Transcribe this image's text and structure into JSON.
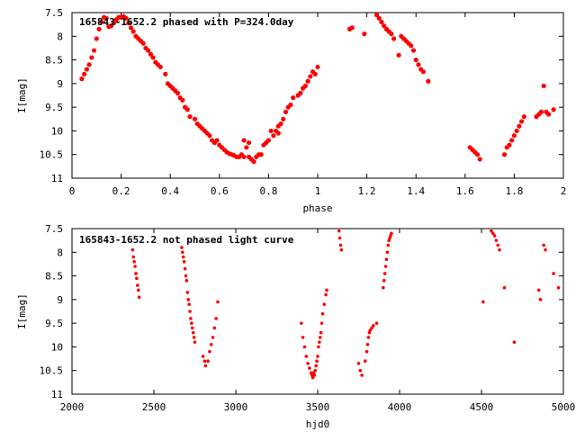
{
  "chart_data": [
    {
      "type": "scatter",
      "title": "165843-1652.2 phased with P=324.0day",
      "xlabel": "phase",
      "ylabel": "I[mag]",
      "xlim": [
        0,
        2
      ],
      "ylim": [
        7.5,
        11
      ],
      "y_inverted": true,
      "grid": false,
      "marker_color": "#ff0000",
      "xticks": [
        "0",
        "0.2",
        "0.4",
        "0.6",
        "0.8",
        "1",
        "1.2",
        "1.4",
        "1.6",
        "1.8",
        "2"
      ],
      "xtick_values": [
        0,
        0.2,
        0.4,
        0.6,
        0.8,
        1.0,
        1.2,
        1.4,
        1.6,
        1.8,
        2.0
      ],
      "yticks": [
        "7.5",
        "8",
        "8.5",
        "9",
        "9.5",
        "10",
        "10.5",
        "11"
      ],
      "ytick_values": [
        7.5,
        8.0,
        8.5,
        9.0,
        9.5,
        10.0,
        10.5,
        11.0
      ],
      "points": [
        [
          0.04,
          8.9
        ],
        [
          0.05,
          8.8
        ],
        [
          0.06,
          8.7
        ],
        [
          0.07,
          8.6
        ],
        [
          0.08,
          8.45
        ],
        [
          0.09,
          8.3
        ],
        [
          0.1,
          8.05
        ],
        [
          0.11,
          7.85
        ],
        [
          0.12,
          7.7
        ],
        [
          0.13,
          7.6
        ],
        [
          0.14,
          7.62
        ],
        [
          0.15,
          7.8
        ],
        [
          0.16,
          7.78
        ],
        [
          0.17,
          7.72
        ],
        [
          0.18,
          7.65
        ],
        [
          0.19,
          7.6
        ],
        [
          0.2,
          7.6
        ],
        [
          0.21,
          7.58
        ],
        [
          0.22,
          7.62
        ],
        [
          0.23,
          7.72
        ],
        [
          0.24,
          7.82
        ],
        [
          0.25,
          7.9
        ],
        [
          0.26,
          8.0
        ],
        [
          0.27,
          8.05
        ],
        [
          0.28,
          8.1
        ],
        [
          0.29,
          8.15
        ],
        [
          0.3,
          8.25
        ],
        [
          0.31,
          8.3
        ],
        [
          0.32,
          8.38
        ],
        [
          0.33,
          8.45
        ],
        [
          0.34,
          8.55
        ],
        [
          0.35,
          8.6
        ],
        [
          0.36,
          8.65
        ],
        [
          0.38,
          8.8
        ],
        [
          0.39,
          9.0
        ],
        [
          0.4,
          9.05
        ],
        [
          0.41,
          9.1
        ],
        [
          0.42,
          9.15
        ],
        [
          0.43,
          9.2
        ],
        [
          0.44,
          9.3
        ],
        [
          0.45,
          9.35
        ],
        [
          0.46,
          9.5
        ],
        [
          0.47,
          9.55
        ],
        [
          0.48,
          9.7
        ],
        [
          0.5,
          9.75
        ],
        [
          0.51,
          9.85
        ],
        [
          0.52,
          9.9
        ],
        [
          0.53,
          9.95
        ],
        [
          0.54,
          10.0
        ],
        [
          0.55,
          10.05
        ],
        [
          0.56,
          10.1
        ],
        [
          0.57,
          10.2
        ],
        [
          0.58,
          10.25
        ],
        [
          0.59,
          10.2
        ],
        [
          0.6,
          10.3
        ],
        [
          0.61,
          10.35
        ],
        [
          0.62,
          10.4
        ],
        [
          0.63,
          10.45
        ],
        [
          0.64,
          10.48
        ],
        [
          0.65,
          10.5
        ],
        [
          0.66,
          10.52
        ],
        [
          0.67,
          10.55
        ],
        [
          0.68,
          10.55
        ],
        [
          0.69,
          10.5
        ],
        [
          0.7,
          10.2
        ],
        [
          0.7,
          10.55
        ],
        [
          0.71,
          10.35
        ],
        [
          0.72,
          10.55
        ],
        [
          0.72,
          10.25
        ],
        [
          0.73,
          10.6
        ],
        [
          0.74,
          10.65
        ],
        [
          0.75,
          10.55
        ],
        [
          0.76,
          10.5
        ],
        [
          0.77,
          10.5
        ],
        [
          0.78,
          10.3
        ],
        [
          0.79,
          10.25
        ],
        [
          0.8,
          10.2
        ],
        [
          0.81,
          10.0
        ],
        [
          0.82,
          10.1
        ],
        [
          0.83,
          10.0
        ],
        [
          0.84,
          9.9
        ],
        [
          0.84,
          10.05
        ],
        [
          0.85,
          9.85
        ],
        [
          0.86,
          9.75
        ],
        [
          0.87,
          9.6
        ],
        [
          0.88,
          9.5
        ],
        [
          0.89,
          9.45
        ],
        [
          0.9,
          9.3
        ],
        [
          0.92,
          9.25
        ],
        [
          0.93,
          9.2
        ],
        [
          0.94,
          9.1
        ],
        [
          0.95,
          9.05
        ],
        [
          0.96,
          8.95
        ],
        [
          0.97,
          8.85
        ],
        [
          0.98,
          8.75
        ],
        [
          0.99,
          8.8
        ],
        [
          1.0,
          8.65
        ],
        [
          1.13,
          7.85
        ],
        [
          1.14,
          7.82
        ],
        [
          1.19,
          7.95
        ],
        [
          1.24,
          7.55
        ],
        [
          1.25,
          7.62
        ],
        [
          1.26,
          7.7
        ],
        [
          1.27,
          7.78
        ],
        [
          1.28,
          7.85
        ],
        [
          1.29,
          7.9
        ],
        [
          1.3,
          7.95
        ],
        [
          1.31,
          8.05
        ],
        [
          1.33,
          8.4
        ],
        [
          1.34,
          8.0
        ],
        [
          1.35,
          8.05
        ],
        [
          1.36,
          8.1
        ],
        [
          1.37,
          8.15
        ],
        [
          1.38,
          8.2
        ],
        [
          1.39,
          8.3
        ],
        [
          1.4,
          8.5
        ],
        [
          1.41,
          8.6
        ],
        [
          1.42,
          8.7
        ],
        [
          1.43,
          8.75
        ],
        [
          1.45,
          8.95
        ],
        [
          1.62,
          10.35
        ],
        [
          1.63,
          10.4
        ],
        [
          1.64,
          10.45
        ],
        [
          1.65,
          10.5
        ],
        [
          1.66,
          10.6
        ],
        [
          1.76,
          10.5
        ],
        [
          1.77,
          10.35
        ],
        [
          1.78,
          10.3
        ],
        [
          1.79,
          10.2
        ],
        [
          1.8,
          10.1
        ],
        [
          1.81,
          10.0
        ],
        [
          1.82,
          9.9
        ],
        [
          1.83,
          9.8
        ],
        [
          1.84,
          9.7
        ],
        [
          1.89,
          9.7
        ],
        [
          1.9,
          9.65
        ],
        [
          1.91,
          9.6
        ],
        [
          1.92,
          9.05
        ],
        [
          1.93,
          9.6
        ],
        [
          1.94,
          9.65
        ],
        [
          1.96,
          9.55
        ]
      ]
    },
    {
      "type": "scatter",
      "title": "165843-1652.2 not phased light curve",
      "xlabel": "hjd0",
      "ylabel": "I[mag]",
      "xlim": [
        2000,
        5000
      ],
      "ylim": [
        7.5,
        11
      ],
      "y_inverted": true,
      "grid": false,
      "marker_color": "#ff0000",
      "xticks": [
        "2000",
        "2500",
        "3000",
        "3500",
        "4000",
        "4500",
        "5000"
      ],
      "xtick_values": [
        2000,
        2500,
        3000,
        3500,
        4000,
        4500,
        5000
      ],
      "yticks": [
        "7.5",
        "8",
        "8.5",
        "9",
        "9.5",
        "10",
        "10.5",
        "11"
      ],
      "ytick_values": [
        7.5,
        8.0,
        8.5,
        9.0,
        9.5,
        10.0,
        10.5,
        11.0
      ],
      "points": [
        [
          2370,
          7.95
        ],
        [
          2375,
          8.1
        ],
        [
          2380,
          8.2
        ],
        [
          2385,
          8.3
        ],
        [
          2390,
          8.45
        ],
        [
          2395,
          8.55
        ],
        [
          2400,
          8.7
        ],
        [
          2405,
          8.8
        ],
        [
          2410,
          8.95
        ],
        [
          2670,
          7.9
        ],
        [
          2675,
          8.0
        ],
        [
          2680,
          8.1
        ],
        [
          2685,
          8.2
        ],
        [
          2690,
          8.35
        ],
        [
          2695,
          8.5
        ],
        [
          2700,
          8.6
        ],
        [
          2705,
          8.85
        ],
        [
          2710,
          9.0
        ],
        [
          2715,
          9.1
        ],
        [
          2720,
          9.25
        ],
        [
          2725,
          9.4
        ],
        [
          2730,
          9.5
        ],
        [
          2735,
          9.6
        ],
        [
          2740,
          9.7
        ],
        [
          2745,
          9.8
        ],
        [
          2750,
          9.9
        ],
        [
          2800,
          10.2
        ],
        [
          2810,
          10.3
        ],
        [
          2815,
          10.4
        ],
        [
          2830,
          10.3
        ],
        [
          2840,
          10.1
        ],
        [
          2850,
          9.95
        ],
        [
          2860,
          9.8
        ],
        [
          2870,
          9.6
        ],
        [
          2880,
          9.4
        ],
        [
          2890,
          9.05
        ],
        [
          3400,
          9.5
        ],
        [
          3410,
          9.8
        ],
        [
          3420,
          10.0
        ],
        [
          3430,
          10.2
        ],
        [
          3440,
          10.35
        ],
        [
          3450,
          10.45
        ],
        [
          3460,
          10.55
        ],
        [
          3465,
          10.6
        ],
        [
          3470,
          10.65
        ],
        [
          3475,
          10.55
        ],
        [
          3480,
          10.6
        ],
        [
          3485,
          10.5
        ],
        [
          3490,
          10.4
        ],
        [
          3495,
          10.3
        ],
        [
          3500,
          10.2
        ],
        [
          3505,
          10.0
        ],
        [
          3510,
          9.9
        ],
        [
          3515,
          9.8
        ],
        [
          3520,
          9.7
        ],
        [
          3525,
          9.5
        ],
        [
          3530,
          9.3
        ],
        [
          3540,
          9.1
        ],
        [
          3550,
          8.9
        ],
        [
          3555,
          8.8
        ],
        [
          3630,
          7.55
        ],
        [
          3635,
          7.7
        ],
        [
          3640,
          7.85
        ],
        [
          3645,
          7.95
        ],
        [
          3750,
          10.35
        ],
        [
          3760,
          10.5
        ],
        [
          3770,
          10.6
        ],
        [
          3790,
          10.3
        ],
        [
          3800,
          10.1
        ],
        [
          3805,
          9.95
        ],
        [
          3810,
          9.8
        ],
        [
          3815,
          9.7
        ],
        [
          3820,
          9.65
        ],
        [
          3830,
          9.6
        ],
        [
          3840,
          9.55
        ],
        [
          3860,
          9.5
        ],
        [
          3900,
          8.75
        ],
        [
          3905,
          8.6
        ],
        [
          3910,
          8.45
        ],
        [
          3915,
          8.3
        ],
        [
          3920,
          8.15
        ],
        [
          3925,
          8.0
        ],
        [
          3930,
          7.85
        ],
        [
          3935,
          7.75
        ],
        [
          3940,
          7.7
        ],
        [
          3945,
          7.65
        ],
        [
          3950,
          7.6
        ],
        [
          4510,
          9.05
        ],
        [
          4560,
          7.55
        ],
        [
          4570,
          7.6
        ],
        [
          4580,
          7.65
        ],
        [
          4590,
          7.75
        ],
        [
          4600,
          7.85
        ],
        [
          4610,
          7.95
        ],
        [
          4640,
          8.75
        ],
        [
          4700,
          9.9
        ],
        [
          4850,
          8.8
        ],
        [
          4860,
          9.0
        ],
        [
          4880,
          7.85
        ],
        [
          4890,
          7.95
        ],
        [
          4940,
          8.45
        ],
        [
          4970,
          8.75
        ]
      ]
    }
  ]
}
